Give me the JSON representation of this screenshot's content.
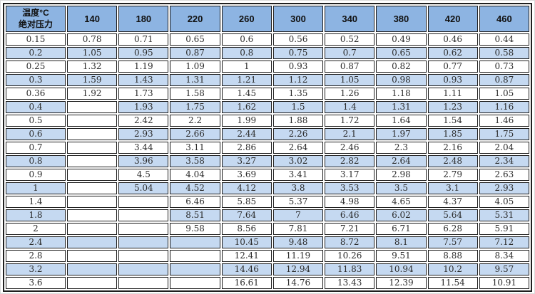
{
  "table": {
    "corner": {
      "line1": "温度°C",
      "line2": "绝对压力"
    },
    "columns": [
      "140",
      "180",
      "220",
      "260",
      "300",
      "340",
      "380",
      "420",
      "460"
    ],
    "colors": {
      "header_bg": "#8DB4E2",
      "stripe_bg": "#C5D9F1",
      "grid_border": "#1f1f1f",
      "text": "#2b2b2b"
    },
    "rows": [
      {
        "label": "0.15",
        "striped": false,
        "empty_blue": false,
        "values": [
          "0.78",
          "0.71",
          "0.65",
          "0.6",
          "0.56",
          "0.52",
          "0.49",
          "0.46",
          "0.44"
        ]
      },
      {
        "label": "0.2",
        "striped": true,
        "empty_blue": false,
        "values": [
          "1.05",
          "0.95",
          "0.87",
          "0.8",
          "0.75",
          "0.7",
          "0.65",
          "0.62",
          "0.58"
        ]
      },
      {
        "label": "0.25",
        "striped": false,
        "empty_blue": false,
        "values": [
          "1.32",
          "1.19",
          "1.09",
          "1",
          "0.93",
          "0.87",
          "0.82",
          "0.77",
          "0.73"
        ]
      },
      {
        "label": "0.3",
        "striped": true,
        "empty_blue": false,
        "values": [
          "1.59",
          "1.43",
          "1.31",
          "1.21",
          "1.12",
          "1.05",
          "0.98",
          "0.93",
          "0.87"
        ]
      },
      {
        "label": "0.36",
        "striped": false,
        "empty_blue": false,
        "values": [
          "1.92",
          "1.73",
          "1.58",
          "1.45",
          "1.35",
          "1.26",
          "1.18",
          "1.11",
          "1.05"
        ]
      },
      {
        "label": "0.4",
        "striped": true,
        "empty_blue": false,
        "values": [
          "",
          "1.93",
          "1.75",
          "1.62",
          "1.5",
          "1.4",
          "1.31",
          "1.23",
          "1.16"
        ]
      },
      {
        "label": "0.5",
        "striped": false,
        "empty_blue": false,
        "values": [
          "",
          "2.42",
          "2.2",
          "1.99",
          "1.88",
          "1.72",
          "1.64",
          "1.54",
          "1.46"
        ]
      },
      {
        "label": "0.6",
        "striped": true,
        "empty_blue": false,
        "values": [
          "",
          "2.93",
          "2.66",
          "2.44",
          "2.26",
          "2.1",
          "1.97",
          "1.85",
          "1.75"
        ]
      },
      {
        "label": "0.7",
        "striped": false,
        "empty_blue": false,
        "values": [
          "",
          "3.44",
          "3.11",
          "2.86",
          "2.64",
          "2.46",
          "2.3",
          "2.16",
          "2.04"
        ]
      },
      {
        "label": "0.8",
        "striped": true,
        "empty_blue": false,
        "values": [
          "",
          "3.96",
          "3.58",
          "3.27",
          "3.02",
          "2.82",
          "2.64",
          "2.48",
          "2.34"
        ]
      },
      {
        "label": "0.9",
        "striped": false,
        "empty_blue": false,
        "values": [
          "",
          "4.5",
          "4.04",
          "3.69",
          "3.41",
          "3.17",
          "2.98",
          "2.79",
          "2.63"
        ]
      },
      {
        "label": "1",
        "striped": true,
        "empty_blue": false,
        "values": [
          "",
          "5.04",
          "4.52",
          "4.12",
          "3.8",
          "3.53",
          "3.5",
          "3.1",
          "2.93"
        ]
      },
      {
        "label": "1.4",
        "striped": false,
        "empty_blue": false,
        "values": [
          "",
          "",
          "6.46",
          "5.85",
          "5.37",
          "4.98",
          "4.65",
          "4.37",
          "4.05"
        ]
      },
      {
        "label": "1.8",
        "striped": true,
        "empty_blue": false,
        "values": [
          "",
          "",
          "8.51",
          "7.64",
          "7",
          "6.46",
          "6.02",
          "5.64",
          "5.31"
        ]
      },
      {
        "label": "2",
        "striped": false,
        "empty_blue": false,
        "values": [
          "",
          "",
          "9.58",
          "8.56",
          "7.81",
          "7.21",
          "6.71",
          "6.28",
          "5.91"
        ]
      },
      {
        "label": "2.4",
        "striped": true,
        "empty_blue": true,
        "values": [
          "",
          "",
          "",
          "10.45",
          "9.48",
          "8.72",
          "8.1",
          "7.57",
          "7.12"
        ]
      },
      {
        "label": "2.8",
        "striped": false,
        "empty_blue": false,
        "values": [
          "",
          "",
          "",
          "12.41",
          "11.19",
          "10.26",
          "9.51",
          "8.88",
          "8.34"
        ]
      },
      {
        "label": "3.2",
        "striped": true,
        "empty_blue": true,
        "values": [
          "",
          "",
          "",
          "14.46",
          "12.94",
          "11.83",
          "10.94",
          "10.2",
          "9.57"
        ]
      },
      {
        "label": "3.6",
        "striped": false,
        "empty_blue": false,
        "values": [
          "",
          "",
          "",
          "16.61",
          "14.76",
          "13.43",
          "12.39",
          "11.54",
          "10.91"
        ]
      }
    ]
  },
  "chart_data": {
    "type": "table",
    "corner_header": [
      "温度°C",
      "绝对压力"
    ],
    "columns_temperature_c": [
      140,
      180,
      220,
      260,
      300,
      340,
      380,
      420,
      460
    ],
    "rows": [
      {
        "absolute_pressure": 0.15,
        "values": [
          0.78,
          0.71,
          0.65,
          0.6,
          0.56,
          0.52,
          0.49,
          0.46,
          0.44
        ]
      },
      {
        "absolute_pressure": 0.2,
        "values": [
          1.05,
          0.95,
          0.87,
          0.8,
          0.75,
          0.7,
          0.65,
          0.62,
          0.58
        ]
      },
      {
        "absolute_pressure": 0.25,
        "values": [
          1.32,
          1.19,
          1.09,
          1,
          0.93,
          0.87,
          0.82,
          0.77,
          0.73
        ]
      },
      {
        "absolute_pressure": 0.3,
        "values": [
          1.59,
          1.43,
          1.31,
          1.21,
          1.12,
          1.05,
          0.98,
          0.93,
          0.87
        ]
      },
      {
        "absolute_pressure": 0.36,
        "values": [
          1.92,
          1.73,
          1.58,
          1.45,
          1.35,
          1.26,
          1.18,
          1.11,
          1.05
        ]
      },
      {
        "absolute_pressure": 0.4,
        "values": [
          null,
          1.93,
          1.75,
          1.62,
          1.5,
          1.4,
          1.31,
          1.23,
          1.16
        ]
      },
      {
        "absolute_pressure": 0.5,
        "values": [
          null,
          2.42,
          2.2,
          1.99,
          1.88,
          1.72,
          1.64,
          1.54,
          1.46
        ]
      },
      {
        "absolute_pressure": 0.6,
        "values": [
          null,
          2.93,
          2.66,
          2.44,
          2.26,
          2.1,
          1.97,
          1.85,
          1.75
        ]
      },
      {
        "absolute_pressure": 0.7,
        "values": [
          null,
          3.44,
          3.11,
          2.86,
          2.64,
          2.46,
          2.3,
          2.16,
          2.04
        ]
      },
      {
        "absolute_pressure": 0.8,
        "values": [
          null,
          3.96,
          3.58,
          3.27,
          3.02,
          2.82,
          2.64,
          2.48,
          2.34
        ]
      },
      {
        "absolute_pressure": 0.9,
        "values": [
          null,
          4.5,
          4.04,
          3.69,
          3.41,
          3.17,
          2.98,
          2.79,
          2.63
        ]
      },
      {
        "absolute_pressure": 1,
        "values": [
          null,
          5.04,
          4.52,
          4.12,
          3.8,
          3.53,
          3.5,
          3.1,
          2.93
        ]
      },
      {
        "absolute_pressure": 1.4,
        "values": [
          null,
          null,
          6.46,
          5.85,
          5.37,
          4.98,
          4.65,
          4.37,
          4.05
        ]
      },
      {
        "absolute_pressure": 1.8,
        "values": [
          null,
          null,
          8.51,
          7.64,
          7,
          6.46,
          6.02,
          5.64,
          5.31
        ]
      },
      {
        "absolute_pressure": 2,
        "values": [
          null,
          null,
          9.58,
          8.56,
          7.81,
          7.21,
          6.71,
          6.28,
          5.91
        ]
      },
      {
        "absolute_pressure": 2.4,
        "values": [
          null,
          null,
          null,
          10.45,
          9.48,
          8.72,
          8.1,
          7.57,
          7.12
        ]
      },
      {
        "absolute_pressure": 2.8,
        "values": [
          null,
          null,
          null,
          12.41,
          11.19,
          10.26,
          9.51,
          8.88,
          8.34
        ]
      },
      {
        "absolute_pressure": 3.2,
        "values": [
          null,
          null,
          null,
          14.46,
          12.94,
          11.83,
          10.94,
          10.2,
          9.57
        ]
      },
      {
        "absolute_pressure": 3.6,
        "values": [
          null,
          null,
          null,
          16.61,
          14.76,
          13.43,
          12.39,
          11.54,
          10.91
        ]
      }
    ],
    "layout": {
      "banded_rows": true,
      "grid": true,
      "legend": "none"
    }
  }
}
